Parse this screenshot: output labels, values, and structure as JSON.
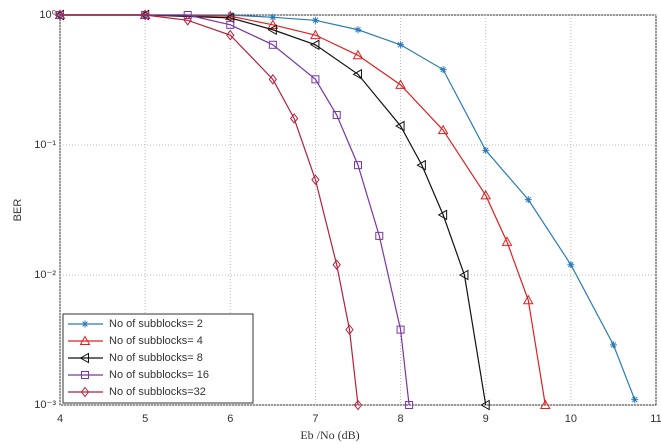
{
  "chart_data": {
    "type": "line",
    "xlabel": "Eb /No (dB)",
    "ylabel": "BER",
    "xlim": [
      4,
      11
    ],
    "xticks": [
      4,
      5,
      6,
      7,
      8,
      9,
      10,
      11
    ],
    "ylim": [
      0.001,
      1
    ],
    "log_y": true,
    "yticks": [
      {
        "value": 0.001,
        "label": "10⁻³"
      },
      {
        "value": 0.01,
        "label": "10⁻²"
      },
      {
        "value": 0.1,
        "label": "10⁻¹"
      },
      {
        "value": 1,
        "label": "10⁰"
      }
    ],
    "grid": true,
    "legend": "lower left",
    "series": [
      {
        "name": "No of subblocks= 2",
        "color": "#2a7ab8",
        "marker": "star",
        "x": [
          4,
          5,
          6,
          6.5,
          7,
          7.5,
          8,
          8.5,
          9,
          9.5,
          10,
          10.5,
          10.75
        ],
        "values": [
          1,
          1,
          1,
          0.96,
          0.91,
          0.77,
          0.59,
          0.38,
          0.091,
          0.038,
          0.012,
          0.0029,
          0.0011
        ]
      },
      {
        "name": "No of subblocks= 4",
        "color": "#e02020",
        "marker": "triangle-up",
        "x": [
          4,
          5,
          6,
          6.5,
          7,
          7.5,
          8,
          8.5,
          9,
          9.25,
          9.5,
          9.7
        ],
        "values": [
          1,
          1,
          0.98,
          0.84,
          0.7,
          0.49,
          0.29,
          0.13,
          0.041,
          0.018,
          0.0064,
          0.001
        ]
      },
      {
        "name": "No of subblocks= 8",
        "color": "#111111",
        "marker": "triangle-left",
        "x": [
          4,
          5,
          6,
          6.5,
          7,
          7.5,
          8,
          8.25,
          8.5,
          8.75,
          9
        ],
        "values": [
          1,
          1,
          0.95,
          0.77,
          0.59,
          0.35,
          0.14,
          0.07,
          0.029,
          0.01,
          0.001
        ]
      },
      {
        "name": "No of subblocks= 16",
        "color": "#7a35a8",
        "marker": "square",
        "x": [
          4,
          5,
          5.5,
          6,
          6.5,
          7,
          7.25,
          7.5,
          7.75,
          8,
          8.1
        ],
        "values": [
          1,
          1,
          1,
          0.84,
          0.59,
          0.32,
          0.17,
          0.07,
          0.02,
          0.0038,
          0.001
        ]
      },
      {
        "name": "No of subblocks=32",
        "color": "#b5203c",
        "marker": "diamond",
        "x": [
          4,
          5,
          5.5,
          6,
          6.5,
          6.75,
          7,
          7.25,
          7.4,
          7.5
        ],
        "values": [
          1,
          1,
          0.91,
          0.7,
          0.32,
          0.16,
          0.054,
          0.012,
          0.0038,
          0.001
        ]
      }
    ]
  }
}
